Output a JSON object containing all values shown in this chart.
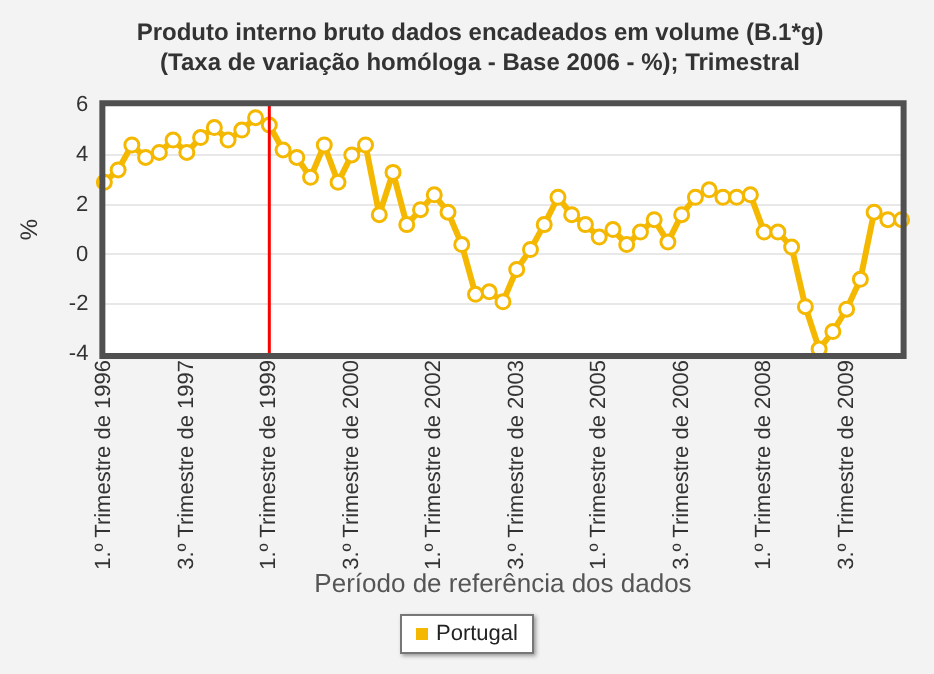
{
  "chart_data": {
    "type": "line",
    "title": "Produto interno bruto dados encadeados em volume (B.1*g) (Taxa de variação homóloga - Base 2006 - %); Trimestral",
    "xlabel": "Período de referência dos dados",
    "ylabel": "%",
    "categories": [
      "1.º Trimestre de 1996",
      null,
      null,
      null,
      null,
      null,
      "3.º Trimestre de 1997",
      null,
      null,
      null,
      null,
      null,
      "1.º Trimestre de 1999",
      null,
      null,
      null,
      null,
      null,
      "3.º Trimestre de 2000",
      null,
      null,
      null,
      null,
      null,
      "1.º Trimestre de 2002",
      null,
      null,
      null,
      null,
      null,
      "3.º Trimestre de 2003",
      null,
      null,
      null,
      null,
      null,
      "1.º Trimestre de 2005",
      null,
      null,
      null,
      null,
      null,
      "3.º Trimestre de 2006",
      null,
      null,
      null,
      null,
      null,
      "1.º Trimestre de 2008",
      null,
      null,
      null,
      null,
      null,
      "3.º Trimestre de 2009",
      null,
      null,
      null,
      null
    ],
    "series": [
      {
        "name": "Portugal",
        "color": "#f5b800",
        "values": [
          2.9,
          3.4,
          4.4,
          3.9,
          4.1,
          4.6,
          4.1,
          4.7,
          5.1,
          4.6,
          5.0,
          5.5,
          5.2,
          4.2,
          3.9,
          3.1,
          4.4,
          2.9,
          4.0,
          4.4,
          1.6,
          3.3,
          1.2,
          1.8,
          2.4,
          1.7,
          0.4,
          -1.6,
          -1.5,
          -1.9,
          -0.6,
          0.2,
          1.2,
          2.3,
          1.6,
          1.2,
          0.7,
          1.0,
          0.4,
          0.9,
          1.4,
          0.5,
          1.6,
          2.3,
          2.6,
          2.3,
          2.3,
          2.4,
          0.9,
          0.9,
          0.3,
          -2.1,
          -3.8,
          -3.1,
          -2.2,
          -1.0,
          1.7,
          1.4,
          1.4
        ]
      }
    ],
    "ylim": [
      -4,
      6
    ],
    "yticks": [
      -4,
      -2,
      0,
      2,
      4,
      6
    ],
    "ref_lines": [
      {
        "axis": "x",
        "value": "1.º Trimestre de 1999",
        "color": "#ff0000"
      }
    ],
    "grid": "y",
    "legend": "bottom",
    "marker": "circle",
    "line_style": "solid"
  }
}
